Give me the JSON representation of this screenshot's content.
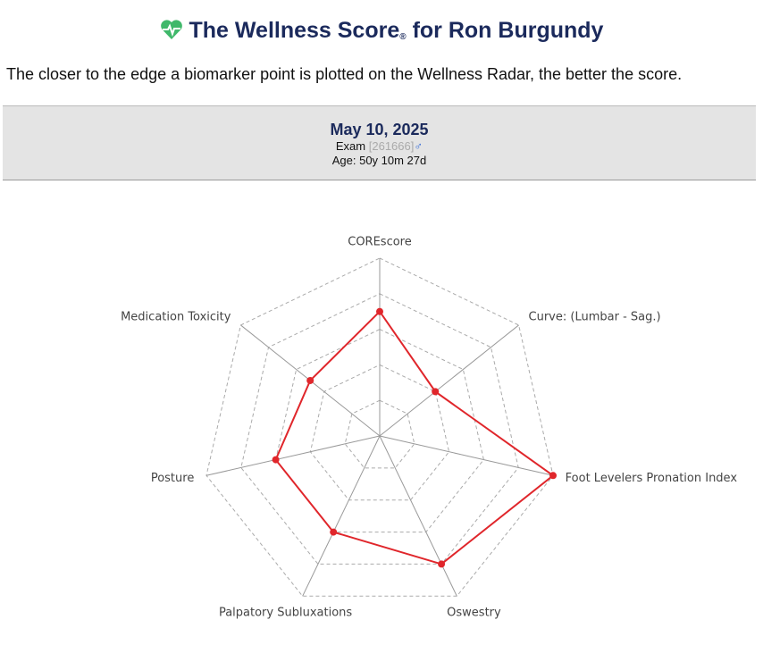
{
  "header": {
    "title": "The Wellness Score",
    "registered": "®",
    "title_suffix": "for Ron Burgundy",
    "intro": "The closer to the edge a biomarker point is plotted on the Wellness Radar, the better the score."
  },
  "exam": {
    "date": "May 10, 2025",
    "label": "Exam",
    "id": "[261666]",
    "sex": "♂",
    "age": "Age: 50y 10m 27d"
  },
  "chart_data": {
    "type": "radar",
    "categories": [
      "COREscore",
      "Curve: (Lumbar - Sag.)",
      "Foot Levelers Pronation Index",
      "Oswestry",
      "Palpatory Subluxations",
      "Posture",
      "Medication Toxicity"
    ],
    "values": [
      3.5,
      2,
      5,
      4,
      3,
      3,
      2.5
    ],
    "color": "#e0262b",
    "rlim": [
      0,
      5
    ],
    "rticks": [
      1,
      2,
      3,
      4,
      5
    ],
    "grid": true
  }
}
